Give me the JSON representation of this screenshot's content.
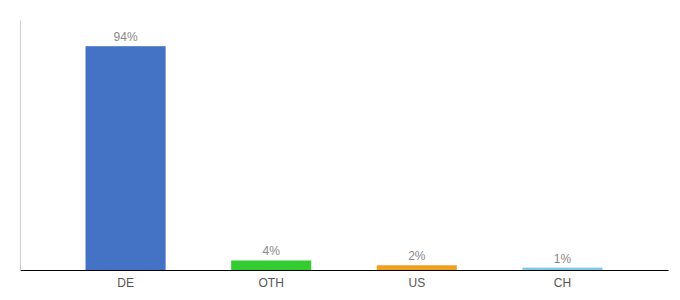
{
  "chart_data": {
    "type": "bar",
    "categories": [
      "DE",
      "OTH",
      "US",
      "CH"
    ],
    "values": [
      94,
      4,
      2,
      1
    ],
    "value_labels": [
      "94%",
      "4%",
      "2%",
      "1%"
    ],
    "colors": [
      "#4472c4",
      "#33cc33",
      "#f0a020",
      "#7ec8e3"
    ],
    "ylim": [
      0,
      105
    ],
    "data_labels": true,
    "tick_labels": "x",
    "grid": false
  }
}
